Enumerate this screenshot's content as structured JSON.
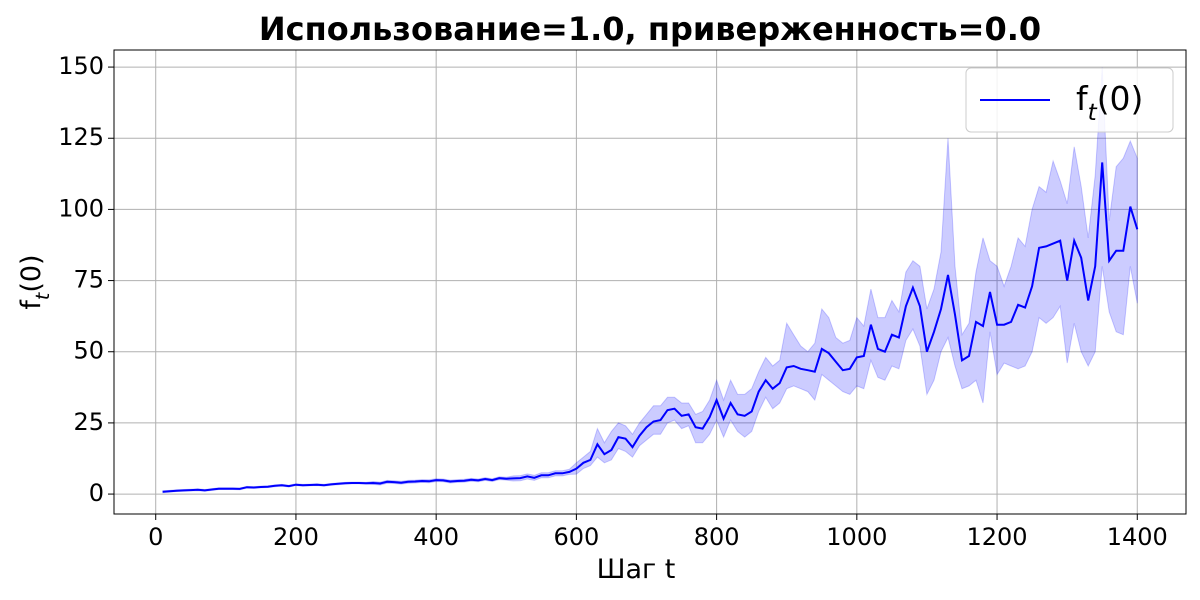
{
  "chart_data": {
    "type": "line",
    "title": "Использование=1.0, приверженность=0.0",
    "xlabel": "Шаг t",
    "ylabel": "f_t(0)",
    "x": [
      10,
      20,
      30,
      40,
      50,
      60,
      70,
      80,
      90,
      100,
      110,
      120,
      130,
      140,
      150,
      160,
      170,
      180,
      190,
      200,
      210,
      220,
      230,
      240,
      250,
      260,
      270,
      280,
      290,
      300,
      310,
      320,
      330,
      340,
      350,
      360,
      370,
      380,
      390,
      400,
      410,
      420,
      430,
      440,
      450,
      460,
      470,
      480,
      490,
      500,
      510,
      520,
      530,
      540,
      550,
      560,
      570,
      580,
      590,
      600,
      610,
      620,
      630,
      640,
      650,
      660,
      670,
      680,
      690,
      700,
      710,
      720,
      730,
      740,
      750,
      760,
      770,
      780,
      790,
      800,
      810,
      820,
      830,
      840,
      850,
      860,
      870,
      880,
      890,
      900,
      910,
      920,
      930,
      940,
      950,
      960,
      970,
      980,
      990,
      1000,
      1010,
      1020,
      1030,
      1040,
      1050,
      1060,
      1070,
      1080,
      1090,
      1100,
      1110,
      1120,
      1130,
      1140,
      1150,
      1160,
      1170,
      1180,
      1190,
      1200,
      1210,
      1220,
      1230,
      1240,
      1250,
      1260,
      1270,
      1280,
      1290,
      1300,
      1310,
      1320,
      1330,
      1340,
      1350,
      1360,
      1370,
      1380,
      1390,
      1400
    ],
    "series": [
      {
        "name": "f_t(0)",
        "color": "#0000ff",
        "values": [
          0.8,
          1.0,
          1.2,
          1.3,
          1.4,
          1.5,
          1.3,
          1.6,
          1.9,
          1.9,
          1.9,
          1.8,
          2.4,
          2.3,
          2.5,
          2.6,
          2.9,
          3.1,
          2.8,
          3.3,
          3.1,
          3.2,
          3.3,
          3.1,
          3.4,
          3.6,
          3.8,
          3.9,
          3.9,
          3.8,
          3.9,
          3.7,
          4.3,
          4.2,
          4.0,
          4.3,
          4.4,
          4.6,
          4.5,
          4.9,
          4.8,
          4.4,
          4.6,
          4.7,
          5.0,
          4.8,
          5.3,
          4.9,
          5.6,
          5.4,
          5.5,
          5.6,
          6.2,
          5.7,
          6.6,
          6.6,
          7.3,
          7.3,
          7.8,
          8.9,
          11,
          12,
          17.5,
          14,
          15.5,
          20,
          19.5,
          16.5,
          20.5,
          23.5,
          25.5,
          26,
          29.5,
          30,
          27.5,
          28,
          23.5,
          23,
          27,
          33,
          26.5,
          32,
          28,
          27.5,
          29,
          36,
          40,
          37,
          39,
          44.5,
          45,
          44,
          43.5,
          43,
          51,
          49.5,
          46.5,
          43.5,
          44,
          48,
          48.5,
          59.5,
          51,
          50,
          56,
          55,
          66,
          72.5,
          66,
          50,
          57,
          65,
          77,
          63,
          47,
          48.5,
          60.5,
          59,
          71,
          59.5,
          59.5,
          60.5,
          66.5,
          65.5,
          73,
          86.5,
          87,
          88,
          89,
          75,
          89,
          83,
          68,
          80,
          116.5,
          82,
          85.5,
          85.5,
          101,
          93
        ]
      }
    ],
    "band": {
      "color": "#0000ff",
      "alpha": 0.2,
      "lower": [
        0.5,
        0.7,
        0.9,
        1.0,
        1.1,
        1.2,
        1.0,
        1.3,
        1.6,
        1.6,
        1.6,
        1.5,
        2.1,
        2.0,
        2.2,
        2.3,
        2.6,
        2.8,
        2.5,
        3.0,
        2.8,
        2.9,
        3.0,
        2.8,
        3.1,
        3.3,
        3.5,
        3.6,
        3.6,
        3.5,
        3.4,
        3.2,
        3.8,
        3.7,
        3.5,
        3.8,
        3.9,
        4.1,
        4.0,
        4.4,
        4.3,
        3.9,
        4.1,
        4.2,
        4.5,
        4.3,
        4.8,
        4.4,
        5.1,
        4.9,
        4.6,
        4.7,
        5.3,
        4.8,
        5.7,
        5.7,
        6.4,
        6.4,
        6.9,
        7,
        9,
        10,
        13,
        11,
        12,
        16,
        15,
        13,
        17,
        19,
        21,
        21,
        25,
        26,
        23,
        24,
        18,
        18,
        21,
        26,
        20,
        26,
        22,
        20,
        22,
        29,
        34,
        30,
        32,
        37,
        38,
        37,
        36,
        33,
        42,
        40,
        38,
        36,
        35,
        38,
        37,
        47,
        41,
        40,
        45,
        44,
        54,
        58,
        52,
        35,
        40,
        50,
        55,
        45,
        37,
        38,
        40,
        32,
        57,
        42,
        46,
        45,
        44,
        45,
        50,
        62,
        60,
        62,
        66,
        46,
        60,
        50,
        45,
        50,
        80,
        64,
        57,
        56,
        80,
        67
      ],
      "upper": [
        1.1,
        1.3,
        1.5,
        1.6,
        1.7,
        1.8,
        1.6,
        1.9,
        2.2,
        2.2,
        2.2,
        2.1,
        2.7,
        2.6,
        2.8,
        2.9,
        3.2,
        3.4,
        3.1,
        3.6,
        3.4,
        3.5,
        3.6,
        3.4,
        3.7,
        3.9,
        4.1,
        4.2,
        4.2,
        4.1,
        4.4,
        4.2,
        4.8,
        4.7,
        4.5,
        4.8,
        4.9,
        5.1,
        5.0,
        5.4,
        5.3,
        4.9,
        5.1,
        5.2,
        5.5,
        5.3,
        5.8,
        5.4,
        6.1,
        5.9,
        6.4,
        6.5,
        7.1,
        6.6,
        7.5,
        7.5,
        8.2,
        8.2,
        8.7,
        11,
        13,
        15,
        23,
        18,
        22,
        25,
        24,
        21,
        25,
        28,
        31,
        31,
        34,
        34,
        32,
        32,
        28,
        29,
        33,
        40,
        33,
        40,
        35,
        35,
        37,
        43,
        48,
        45,
        47,
        60,
        56,
        52,
        50,
        53,
        65,
        62,
        55,
        53,
        54,
        62,
        59,
        72,
        62,
        62,
        68,
        64,
        78,
        82,
        80,
        65,
        72,
        85,
        125,
        80,
        56,
        60,
        78,
        90,
        82,
        80,
        73,
        80,
        90,
        87,
        100,
        108,
        106,
        117,
        110,
        102,
        122,
        108,
        90,
        112,
        150,
        96,
        115,
        118,
        124,
        118
      ]
    },
    "xlim": [
      -59.5,
      1469.5
    ],
    "ylim": [
      -7,
      156
    ],
    "xticks": [
      0,
      200,
      400,
      600,
      800,
      1000,
      1200,
      1400
    ],
    "yticks": [
      0,
      25,
      50,
      75,
      100,
      125,
      150
    ],
    "grid": true,
    "legend": "upper right"
  }
}
